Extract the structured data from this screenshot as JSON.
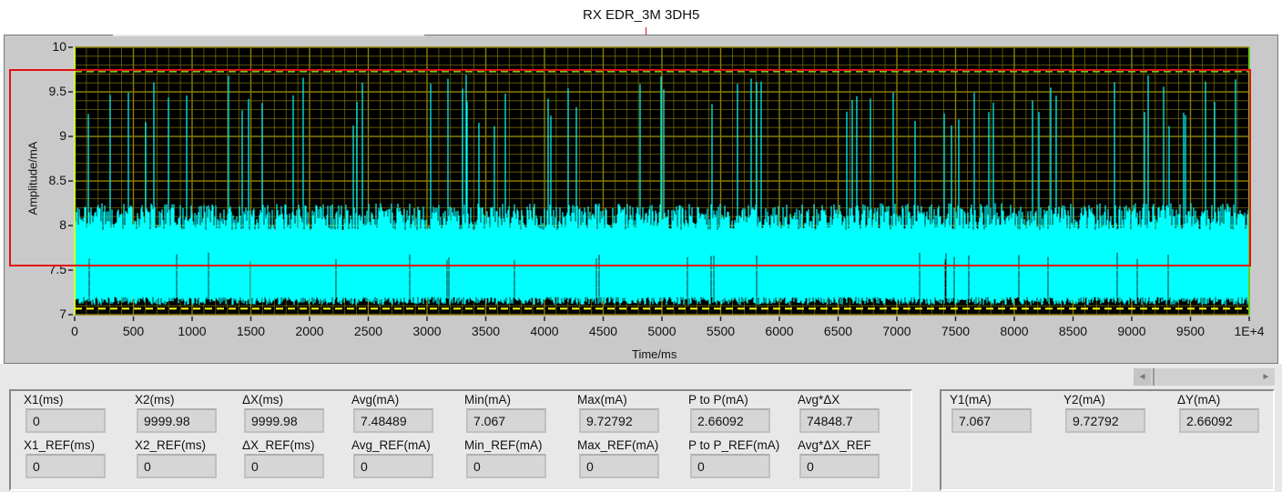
{
  "annotation": "RX EDR_3M 3DH5",
  "chart_data": {
    "type": "line",
    "xlabel": "Time/ms",
    "ylabel": "Amplitude/mA",
    "xlim": [
      0,
      10000
    ],
    "ylim": [
      7,
      10
    ],
    "x_ticks": [
      "0",
      "500",
      "1000",
      "1500",
      "2000",
      "2500",
      "3000",
      "3500",
      "4000",
      "4500",
      "5000",
      "5500",
      "6000",
      "6500",
      "7000",
      "7500",
      "8000",
      "8500",
      "9000",
      "9500",
      "1E+4"
    ],
    "y_ticks": [
      "10",
      "9.5",
      "9",
      "8.5",
      "8",
      "7.5",
      "7"
    ],
    "grid": true,
    "colors": {
      "trace": "#00ffff",
      "background": "#000000",
      "grid": "#8a7d00",
      "cursor_low": "#ffff00",
      "cursor_high": "#66cc22",
      "highlight_box": "#e01010"
    },
    "cursor_low": 7.067,
    "cursor_high": 9.72792
  },
  "x_group": {
    "caption": "",
    "fields": [
      {
        "label": "X1(ms)",
        "value": "0"
      },
      {
        "label": "X2(ms)",
        "value": "9999.98"
      },
      {
        "label": "ΔX(ms)",
        "value": "9999.98"
      },
      {
        "label": "Avg(mA)",
        "value": "7.48489"
      },
      {
        "label": "Min(mA)",
        "value": "7.067"
      },
      {
        "label": "Max(mA)",
        "value": "9.72792"
      },
      {
        "label": "P to P(mA)",
        "value": "2.66092"
      },
      {
        "label": "Avg*ΔX",
        "value": "74848.7"
      }
    ],
    "ref_fields": [
      {
        "label": "X1_REF(ms)",
        "value": "0"
      },
      {
        "label": "X2_REF(ms)",
        "value": "0"
      },
      {
        "label": "ΔX_REF(ms)",
        "value": "0"
      },
      {
        "label": "Avg_REF(mA)",
        "value": "0"
      },
      {
        "label": "Min_REF(mA)",
        "value": "0"
      },
      {
        "label": "Max_REF(mA)",
        "value": "0"
      },
      {
        "label": "P to P_REF(mA)",
        "value": "0"
      },
      {
        "label": "Avg*ΔX_REF",
        "value": "0"
      }
    ]
  },
  "y_group": {
    "caption": "",
    "fields": [
      {
        "label": "Y1(mA)",
        "value": "7.067"
      },
      {
        "label": "Y2(mA)",
        "value": "9.72792"
      },
      {
        "label": "ΔY(mA)",
        "value": "2.66092"
      }
    ]
  },
  "scrollbar": {
    "left_icon": "arrow-left-icon",
    "right_icon": "arrow-right-icon"
  }
}
